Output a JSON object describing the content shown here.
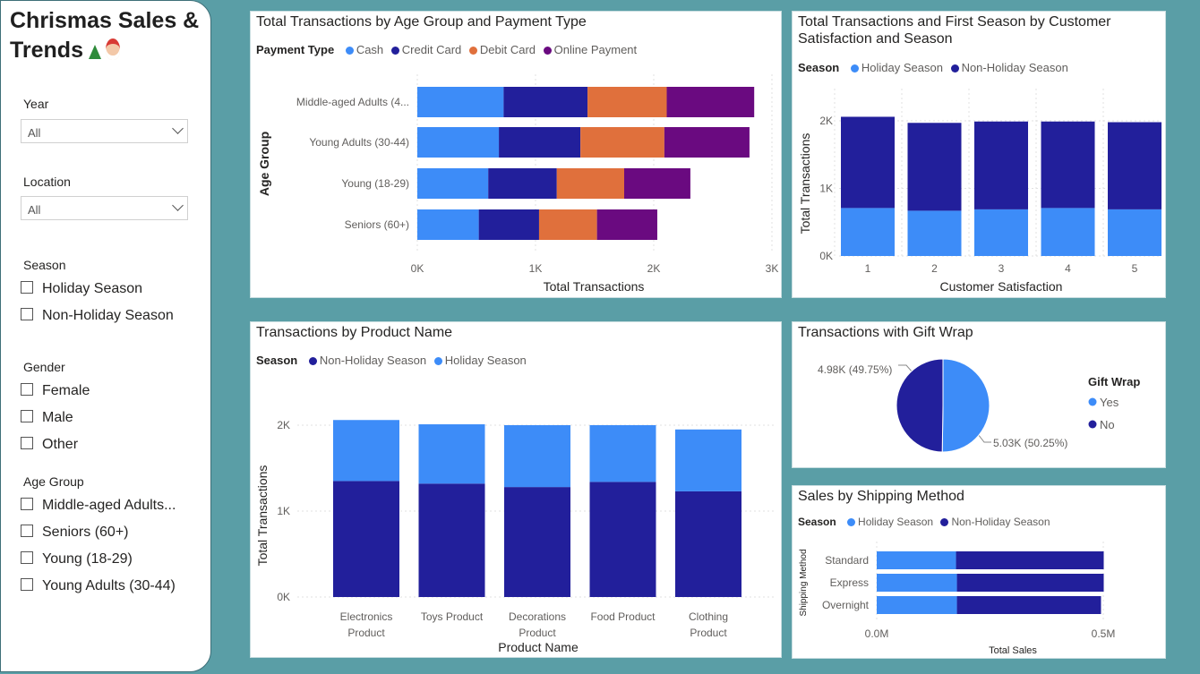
{
  "colors": {
    "holiday": "#3d8cf8",
    "nonholiday": "#221f9b",
    "cash": "#3d8cf8",
    "credit": "#221f9b",
    "debit": "#e0703c",
    "online": "#6a0a80"
  },
  "sidebar": {
    "title": "Chrismas Sales & Trends",
    "icons": [
      "tree-icon",
      "santa-icon"
    ],
    "year": {
      "label": "Year",
      "value": "All"
    },
    "location": {
      "label": "Location",
      "value": "All"
    },
    "season": {
      "label": "Season",
      "options": [
        "Holiday Season",
        "Non-Holiday Season"
      ]
    },
    "gender": {
      "label": "Gender",
      "options": [
        "Female",
        "Male",
        "Other"
      ]
    },
    "age_group": {
      "label": "Age Group",
      "options": [
        "Middle-aged Adults...",
        "Seniors (60+)",
        "Young (18-29)",
        "Young Adults (30-44)"
      ]
    }
  },
  "age_chart": {
    "title": "Total Transactions by Age Group and Payment Type",
    "legend_title": "Payment Type",
    "legend": [
      "Cash",
      "Credit Card",
      "Debit Card",
      "Online Payment"
    ],
    "xlabel": "Total Transactions",
    "ylabel": "Age Group",
    "ticks": [
      "0K",
      "1K",
      "2K",
      "3K"
    ]
  },
  "sat_chart": {
    "title_line1": "Total Transactions and First Season by Customer",
    "title_line2": "Satisfaction and Season",
    "legend_title": "Season",
    "legend": [
      "Holiday Season",
      "Non-Holiday Season"
    ],
    "xlabel": "Customer Satisfaction",
    "ylabel": "Total Transactions",
    "ticks": [
      "0K",
      "1K",
      "2K"
    ]
  },
  "product_chart": {
    "title": "Transactions by Product Name",
    "legend_title": "Season",
    "legend": [
      "Non-Holiday Season",
      "Holiday Season"
    ],
    "xlabel": "Product Name",
    "ylabel": "Total Transactions",
    "ticks": [
      "0K",
      "1K",
      "2K"
    ]
  },
  "gift_chart": {
    "title": "Transactions with Gift Wrap",
    "legend_title": "Gift Wrap",
    "legend": [
      "Yes",
      "No"
    ],
    "label_no": "4.98K (49.75%)",
    "label_yes": "5.03K (50.25%)"
  },
  "shipping_chart": {
    "title": "Sales by Shipping Method",
    "legend_title": "Season",
    "legend": [
      "Holiday Season",
      "Non-Holiday Season"
    ],
    "xlabel": "Total Sales",
    "ylabel": "Shipping Method",
    "ticks": [
      "0.0M",
      "0.5M"
    ]
  },
  "chart_data": [
    {
      "type": "bar",
      "orientation": "horizontal",
      "stacked": true,
      "title": "Total Transactions by Age Group and Payment Type",
      "categories": [
        "Middle-aged Adults (4...",
        "Young Adults (30-44)",
        "Young (18-29)",
        "Seniors (60+)"
      ],
      "series": [
        {
          "name": "Cash",
          "values": [
            730,
            690,
            600,
            520
          ]
        },
        {
          "name": "Credit Card",
          "values": [
            710,
            690,
            580,
            510
          ]
        },
        {
          "name": "Debit Card",
          "values": [
            670,
            710,
            570,
            490
          ]
        },
        {
          "name": "Online Payment",
          "values": [
            740,
            720,
            560,
            510
          ]
        }
      ],
      "xlabel": "Total Transactions",
      "ylabel": "Age Group",
      "xlim": [
        0,
        3000
      ],
      "legend_position": "top-left",
      "grid": true
    },
    {
      "type": "bar",
      "stacked": true,
      "title": "Total Transactions and First Season by Customer Satisfaction and Season",
      "categories": [
        "1",
        "2",
        "3",
        "4",
        "5"
      ],
      "series": [
        {
          "name": "Holiday Season",
          "values": [
            710,
            670,
            690,
            710,
            690
          ]
        },
        {
          "name": "Non-Holiday Season",
          "values": [
            1350,
            1300,
            1300,
            1280,
            1290
          ]
        }
      ],
      "xlabel": "Customer Satisfaction",
      "ylabel": "Total Transactions",
      "ylim": [
        0,
        2000
      ],
      "legend_position": "top-left",
      "grid": true
    },
    {
      "type": "bar",
      "stacked": true,
      "title": "Transactions by Product Name",
      "categories": [
        "Electronics Product",
        "Toys Product",
        "Decorations Product",
        "Food Product",
        "Clothing Product"
      ],
      "series": [
        {
          "name": "Non-Holiday Season",
          "values": [
            1350,
            1320,
            1280,
            1340,
            1230
          ]
        },
        {
          "name": "Holiday Season",
          "values": [
            710,
            690,
            720,
            660,
            720
          ]
        }
      ],
      "xlabel": "Product Name",
      "ylabel": "Total Transactions",
      "ylim": [
        0,
        2000
      ],
      "legend_position": "top-left",
      "grid": true
    },
    {
      "type": "pie",
      "title": "Transactions with Gift Wrap",
      "categories": [
        "Yes",
        "No"
      ],
      "values": [
        5030,
        4980
      ],
      "percentages": [
        50.25,
        49.75
      ],
      "legend_position": "right"
    },
    {
      "type": "bar",
      "orientation": "horizontal",
      "stacked": true,
      "title": "Sales by Shipping Method",
      "categories": [
        "Standard",
        "Express",
        "Overnight"
      ],
      "series": [
        {
          "name": "Holiday Season",
          "values": [
            0.175,
            0.177,
            0.177
          ]
        },
        {
          "name": "Non-Holiday Season",
          "values": [
            0.326,
            0.324,
            0.318
          ]
        }
      ],
      "xlabel": "Total Sales",
      "ylabel": "Shipping Method",
      "xlim": [
        0,
        0.5
      ],
      "legend_position": "top-left",
      "grid": true
    }
  ]
}
